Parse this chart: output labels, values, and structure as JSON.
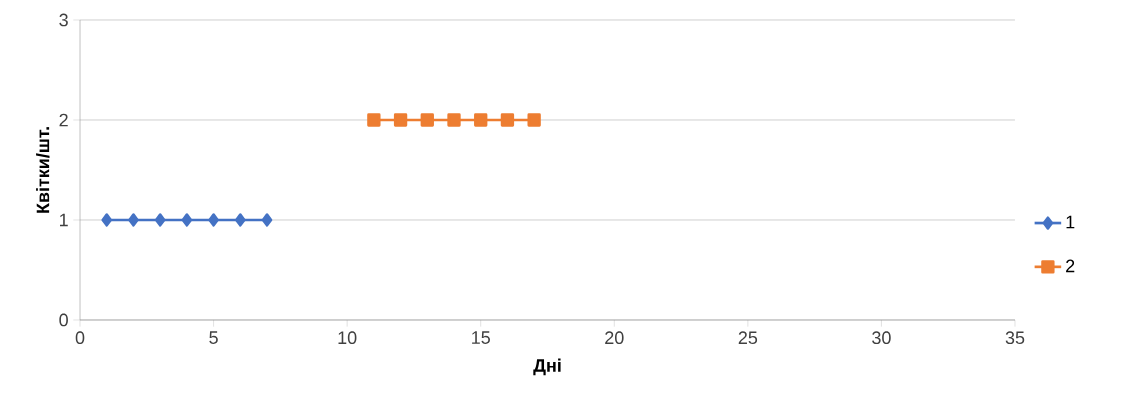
{
  "chart_data": {
    "type": "line",
    "xlabel": "Дні",
    "ylabel": "Квітки/шт.",
    "xlim": [
      0,
      35
    ],
    "xticks": [
      0,
      5,
      10,
      15,
      20,
      25,
      30,
      35
    ],
    "ylim": [
      0,
      3
    ],
    "yticks": [
      0,
      1,
      2,
      3
    ],
    "grid": "y",
    "legend": "right",
    "series": [
      {
        "name": "1",
        "color": "#4472c4",
        "marker": "diamond",
        "x": [
          1,
          2,
          3,
          4,
          5,
          6,
          7
        ],
        "values": [
          1,
          1,
          1,
          1,
          1,
          1,
          1
        ]
      },
      {
        "name": "2",
        "color": "#ed7d31",
        "marker": "square",
        "x": [
          11,
          12,
          13,
          14,
          15,
          16,
          17
        ],
        "values": [
          2,
          2,
          2,
          2,
          2,
          2,
          2
        ]
      }
    ]
  }
}
